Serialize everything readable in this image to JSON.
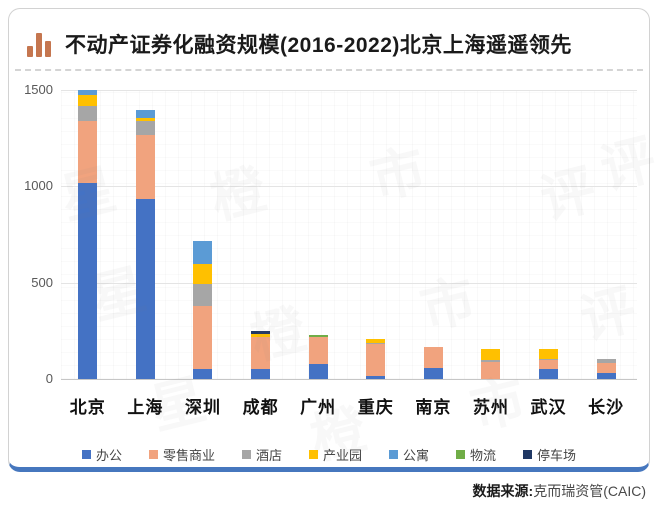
{
  "title": {
    "part1": "不动产证券化融资规模(2016-2022)",
    "part2": "北京上海遥遥领先"
  },
  "source": {
    "label": "数据来源:",
    "value": "克而瑞资管(CAIC)"
  },
  "watermark_chars": [
    "橙",
    "市",
    "评",
    "星"
  ],
  "colors": {
    "accent_border": "#4677BE",
    "title_icon": "#C5764F",
    "axis_text": "#595959"
  },
  "chart_data": {
    "type": "bar",
    "stacked": true,
    "grid": true,
    "legend_position": "bottom",
    "ylim": [
      0,
      1500
    ],
    "yticks": [
      0,
      500,
      1000,
      1500
    ],
    "xlabel": "",
    "ylabel": "",
    "categories": [
      "北京",
      "上海",
      "深圳",
      "成都",
      "广州",
      "重庆",
      "南京",
      "苏州",
      "武汉",
      "长沙"
    ],
    "series": [
      {
        "name": "办公",
        "color": "#4472C4",
        "values": [
          1018,
          935,
          52,
          52,
          78,
          15,
          55,
          0,
          50,
          30
        ]
      },
      {
        "name": "零售商业",
        "color": "#F1A37E",
        "values": [
          320,
          330,
          325,
          168,
          140,
          168,
          110,
          88,
          47,
          52
        ]
      },
      {
        "name": "酒店",
        "color": "#A6A6A6",
        "values": [
          78,
          72,
          114,
          0,
          0,
          5,
          0,
          12,
          8,
          20
        ]
      },
      {
        "name": "产业园",
        "color": "#FFC000",
        "values": [
          58,
          20,
          104,
          15,
          0,
          18,
          0,
          55,
          50,
          0
        ]
      },
      {
        "name": "公寓",
        "color": "#5B9BD5",
        "values": [
          25,
          42,
          120,
          0,
          0,
          0,
          0,
          0,
          0,
          0
        ]
      },
      {
        "name": "物流",
        "color": "#70AD47",
        "values": [
          0,
          0,
          0,
          0,
          10,
          0,
          0,
          0,
          0,
          0
        ]
      },
      {
        "name": "停车场",
        "color": "#203864",
        "values": [
          0,
          0,
          0,
          15,
          0,
          0,
          0,
          0,
          0,
          0
        ]
      }
    ],
    "totals": [
      1499,
      1399,
      715,
      250,
      228,
      206,
      165,
      155,
      155,
      102
    ]
  }
}
